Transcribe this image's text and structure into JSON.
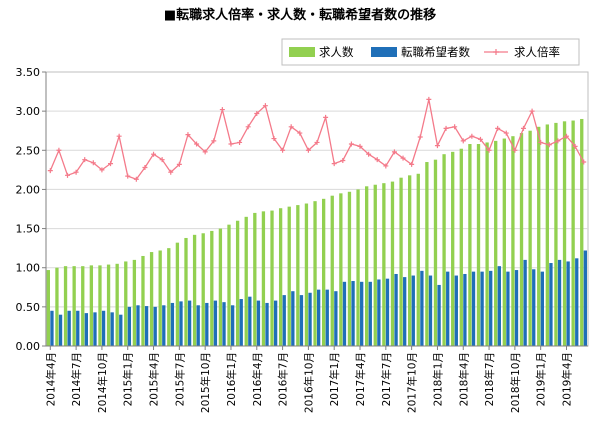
{
  "chart_data": {
    "type": "bar",
    "title": "■転職求人倍率・求人数・転職希望者数の推移",
    "xlabel": "",
    "ylabel": "",
    "ylim": [
      0,
      3.5
    ],
    "yticks": [
      "0.00",
      "0.50",
      "1.00",
      "1.50",
      "2.00",
      "2.50",
      "3.00",
      "3.50"
    ],
    "grid": true,
    "legend_position": "top-right",
    "categories": [
      "2014年4月",
      "2014年5月",
      "2014年6月",
      "2014年7月",
      "2014年8月",
      "2014年9月",
      "2014年10月",
      "2014年11月",
      "2014年12月",
      "2015年1月",
      "2015年2月",
      "2015年3月",
      "2015年4月",
      "2015年5月",
      "2015年6月",
      "2015年7月",
      "2015年8月",
      "2015年9月",
      "2015年10月",
      "2015年11月",
      "2015年12月",
      "2016年1月",
      "2016年2月",
      "2016年3月",
      "2016年4月",
      "2016年5月",
      "2016年6月",
      "2016年7月",
      "2016年8月",
      "2016年9月",
      "2016年10月",
      "2016年11月",
      "2016年12月",
      "2017年1月",
      "2017年2月",
      "2017年3月",
      "2017年4月",
      "2017年5月",
      "2017年6月",
      "2017年7月",
      "2017年8月",
      "2017年9月",
      "2017年10月",
      "2017年11月",
      "2017年12月",
      "2018年1月",
      "2018年2月",
      "2018年3月",
      "2018年4月",
      "2018年5月",
      "2018年6月",
      "2018年7月",
      "2018年8月",
      "2018年9月",
      "2018年10月",
      "2018年11月",
      "2018年12月",
      "2019年1月",
      "2019年2月",
      "2019年3月",
      "2019年4月",
      "2019年5月",
      "2019年6月"
    ],
    "tick_every": 3,
    "series": [
      {
        "name": "求人数",
        "type": "bar",
        "color": "#92d050",
        "values": [
          0.97,
          1.0,
          1.02,
          1.02,
          1.02,
          1.03,
          1.03,
          1.04,
          1.05,
          1.08,
          1.1,
          1.15,
          1.2,
          1.22,
          1.25,
          1.32,
          1.38,
          1.42,
          1.44,
          1.47,
          1.5,
          1.55,
          1.6,
          1.65,
          1.7,
          1.72,
          1.73,
          1.76,
          1.78,
          1.8,
          1.82,
          1.85,
          1.88,
          1.92,
          1.95,
          1.97,
          2.0,
          2.04,
          2.06,
          2.08,
          2.1,
          2.15,
          2.18,
          2.2,
          2.35,
          2.38,
          2.45,
          2.48,
          2.52,
          2.58,
          2.58,
          2.6,
          2.62,
          2.65,
          2.68,
          2.72,
          2.75,
          2.8,
          2.83,
          2.85,
          2.87,
          2.88,
          2.9
        ]
      },
      {
        "name": "転職希望者数",
        "type": "bar",
        "color": "#1f6fb8",
        "values": [
          0.45,
          0.4,
          0.45,
          0.45,
          0.42,
          0.43,
          0.45,
          0.43,
          0.4,
          0.5,
          0.52,
          0.51,
          0.5,
          0.52,
          0.55,
          0.57,
          0.58,
          0.52,
          0.55,
          0.58,
          0.56,
          0.52,
          0.6,
          0.63,
          0.58,
          0.55,
          0.58,
          0.65,
          0.7,
          0.65,
          0.68,
          0.72,
          0.72,
          0.7,
          0.82,
          0.83,
          0.82,
          0.82,
          0.85,
          0.86,
          0.92,
          0.88,
          0.9,
          0.96,
          0.9,
          0.78,
          0.95,
          0.9,
          0.92,
          0.95,
          0.95,
          0.96,
          1.02,
          0.95,
          0.97,
          1.1,
          0.98,
          0.95,
          1.06,
          1.1,
          1.08,
          1.12,
          1.22
        ]
      },
      {
        "name": "求人倍率",
        "type": "line",
        "color": "#f47a8a",
        "values": [
          2.24,
          2.5,
          2.18,
          2.22,
          2.38,
          2.34,
          2.25,
          2.33,
          2.68,
          2.17,
          2.13,
          2.28,
          2.45,
          2.38,
          2.22,
          2.32,
          2.7,
          2.58,
          2.48,
          2.62,
          3.02,
          2.58,
          2.6,
          2.8,
          2.97,
          3.07,
          2.65,
          2.5,
          2.8,
          2.72,
          2.5,
          2.6,
          2.92,
          2.33,
          2.37,
          2.58,
          2.55,
          2.45,
          2.38,
          2.3,
          2.48,
          2.4,
          2.32,
          2.67,
          3.15,
          2.56,
          2.78,
          2.8,
          2.62,
          2.68,
          2.64,
          2.5,
          2.78,
          2.72,
          2.5,
          2.78,
          3.0,
          2.6,
          2.57,
          2.62,
          2.68,
          2.55,
          2.35
        ]
      }
    ]
  }
}
